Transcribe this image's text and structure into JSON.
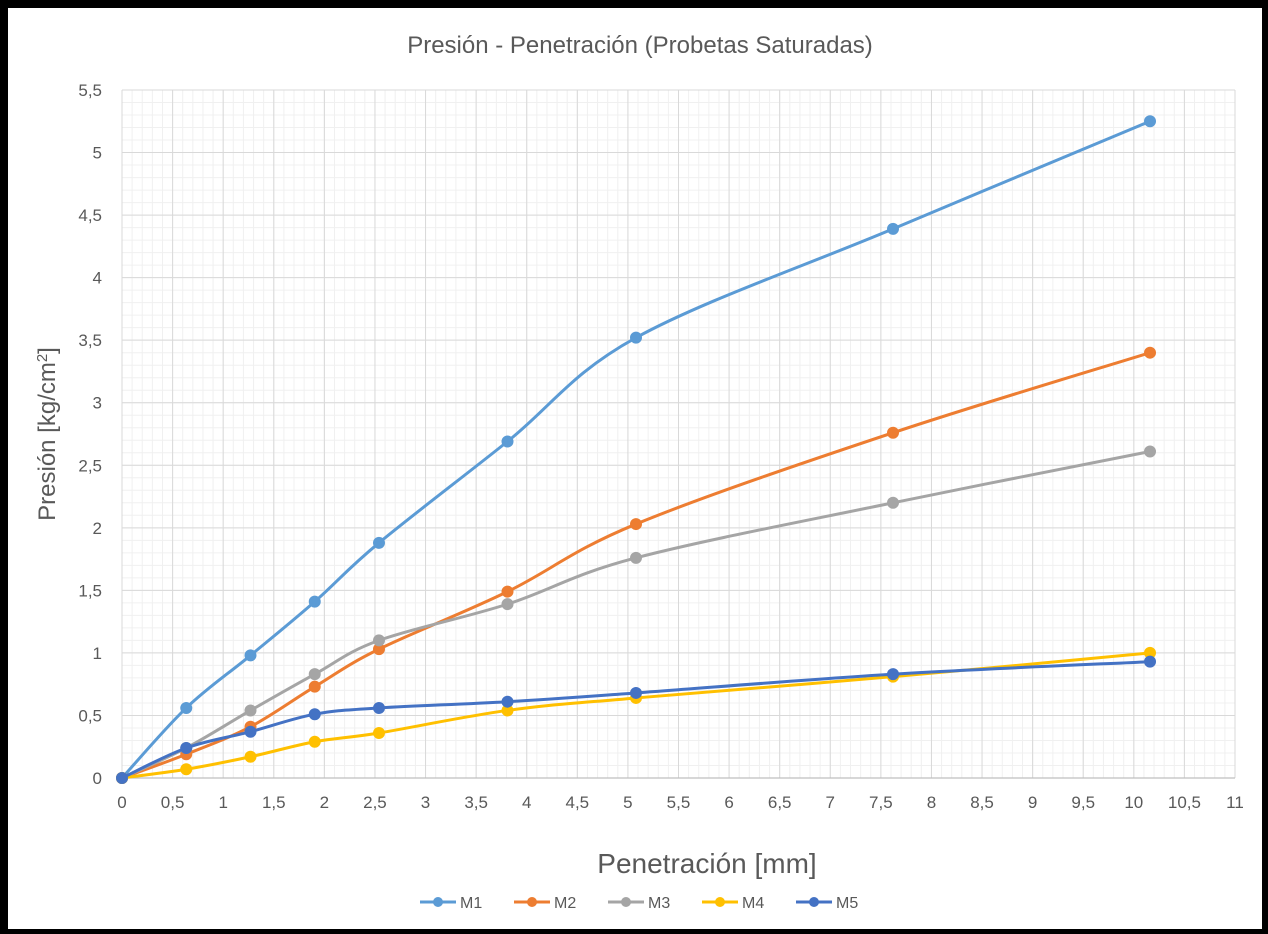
{
  "chart_data": {
    "type": "line",
    "title": "Presión - Penetración (Probetas Saturadas)",
    "xlabel": "Penetración [mm]",
    "ylabel": "Presión [kg/cm²]",
    "ylabel_main": "Presión [kg/cm",
    "ylabel_sup": "2",
    "ylabel_end": "]",
    "xlim": [
      0,
      11
    ],
    "ylim": [
      0,
      5.5
    ],
    "x_major": 0.5,
    "y_major": 0.5,
    "x_minor": 0.1,
    "y_minor": 0.1,
    "grid": true,
    "smooth": true,
    "legend_position": "bottom",
    "x_tick_labels": [
      "0",
      "0,5",
      "1",
      "1,5",
      "2",
      "2,5",
      "3",
      "3,5",
      "4",
      "4,5",
      "5",
      "5,5",
      "6",
      "6,5",
      "7",
      "7,5",
      "8",
      "8,5",
      "9",
      "9,5",
      "10",
      "10,5",
      "11"
    ],
    "y_tick_labels": [
      "0",
      "0,5",
      "1",
      "1,5",
      "2",
      "2,5",
      "3",
      "3,5",
      "4",
      "4,5",
      "5",
      "5,5"
    ],
    "x": [
      0,
      0.635,
      1.27,
      1.905,
      2.54,
      3.81,
      5.08,
      7.62,
      10.16
    ],
    "series": [
      {
        "name": "M1",
        "color": "#5B9BD5",
        "values": [
          0,
          0.56,
          0.98,
          1.41,
          1.88,
          2.69,
          3.52,
          4.39,
          5.25
        ]
      },
      {
        "name": "M2",
        "color": "#ED7D31",
        "values": [
          0,
          0.19,
          0.41,
          0.73,
          1.03,
          1.49,
          2.03,
          2.76,
          3.4
        ]
      },
      {
        "name": "M3",
        "color": "#A5A5A5",
        "values": [
          0,
          0.24,
          0.54,
          0.83,
          1.1,
          1.39,
          1.76,
          2.2,
          2.61
        ]
      },
      {
        "name": "M4",
        "color": "#FFC000",
        "values": [
          0,
          0.07,
          0.17,
          0.29,
          0.36,
          0.54,
          0.64,
          0.81,
          1.0
        ]
      },
      {
        "name": "M5",
        "color": "#4472C4",
        "values": [
          0,
          0.24,
          0.37,
          0.51,
          0.56,
          0.61,
          0.68,
          0.83,
          0.93
        ]
      }
    ]
  }
}
